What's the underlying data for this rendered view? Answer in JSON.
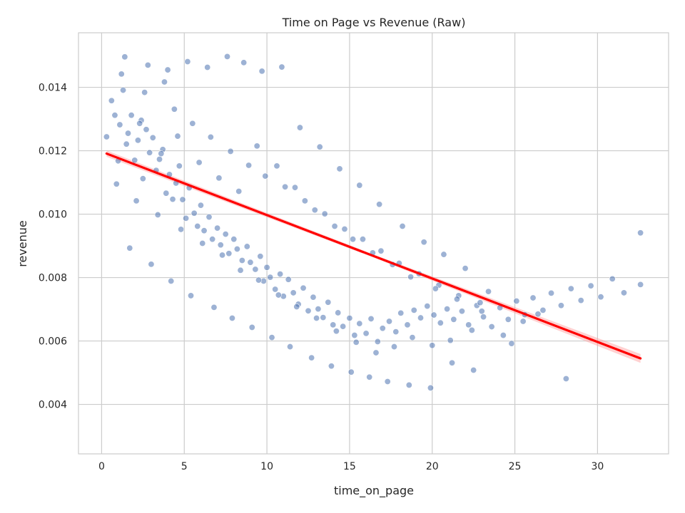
{
  "chart_data": {
    "type": "scatter",
    "title": "Time on Page vs Revenue (Raw)",
    "xlabel": "time_on_page",
    "ylabel": "revenue",
    "xlim": [
      -1.4,
      34.3
    ],
    "ylim": [
      0.00244,
      0.01572
    ],
    "x_ticks": [
      0,
      5,
      10,
      15,
      20,
      25,
      30
    ],
    "x_tick_labels": [
      "0",
      "5",
      "10",
      "15",
      "20",
      "25",
      "30"
    ],
    "y_ticks": [
      0.004,
      0.006,
      0.008,
      0.01,
      0.012,
      0.014
    ],
    "y_tick_labels": [
      "0.004",
      "0.006",
      "0.008",
      "0.010",
      "0.012",
      "0.014"
    ],
    "grid": true,
    "colors": {
      "points": "#4c72b0",
      "regression_line": "#ff0000",
      "confidence_band": "#ff9999",
      "grid": "#cccccc",
      "spines": "#cccccc"
    },
    "series": [
      {
        "kind": "points",
        "approx_point_count": 3000,
        "x": [
          0.3,
          0.6,
          0.8,
          1.0,
          1.1,
          1.3,
          1.5,
          1.6,
          1.8,
          2.0,
          2.2,
          2.4,
          2.5,
          2.7,
          2.9,
          3.1,
          3.3,
          3.5,
          3.7,
          3.9,
          4.1,
          4.3,
          4.5,
          4.7,
          4.9,
          5.1,
          5.3,
          5.6,
          5.8,
          6.0,
          6.2,
          6.5,
          6.7,
          7.0,
          7.2,
          7.5,
          7.7,
          8.0,
          8.2,
          8.5,
          8.8,
          9.0,
          9.3,
          9.6,
          9.8,
          10.0,
          10.2,
          10.5,
          10.8,
          11.0,
          11.3,
          11.6,
          11.9,
          12.2,
          12.5,
          12.8,
          13.1,
          13.4,
          13.7,
          14.0,
          14.3,
          14.6,
          15.0,
          15.3,
          15.6,
          16.0,
          16.3,
          16.7,
          17.0,
          17.4,
          17.8,
          18.1,
          18.5,
          18.9,
          19.3,
          19.7,
          20.1,
          20.5,
          20.9,
          21.3,
          21.8,
          22.2,
          22.7,
          23.1,
          23.6,
          24.1,
          24.6,
          25.1,
          25.6,
          26.1,
          26.7,
          27.2,
          27.8,
          28.4,
          29.0,
          29.6,
          30.2,
          30.9,
          31.6,
          32.6,
          1.2,
          2.6,
          3.8,
          4.4,
          5.5,
          6.6,
          7.8,
          8.9,
          9.9,
          11.1,
          12.3,
          13.5,
          14.7,
          15.8,
          16.9,
          18.0,
          19.2,
          20.4,
          21.6,
          22.9,
          0.9,
          2.1,
          3.4,
          4.8,
          6.1,
          7.3,
          8.4,
          9.5,
          10.7,
          11.8,
          13.0,
          14.2,
          15.4,
          16.6,
          17.7,
          18.8,
          20.0,
          21.1,
          22.4,
          24.3,
          1.4,
          2.8,
          4.0,
          5.2,
          6.4,
          7.6,
          8.6,
          9.7,
          10.9,
          12.0,
          13.2,
          14.4,
          15.6,
          16.8,
          18.2,
          19.5,
          20.7,
          22.0,
          23.4,
          26.4,
          1.7,
          3.0,
          4.2,
          5.4,
          6.8,
          7.9,
          9.1,
          10.3,
          11.4,
          12.7,
          13.9,
          15.1,
          16.2,
          17.3,
          18.6,
          19.9,
          21.2,
          22.5,
          24.8,
          28.1,
          2.3,
          3.6,
          4.6,
          5.9,
          7.1,
          8.3,
          9.4,
          10.6,
          11.7,
          12.9,
          14.1,
          15.2,
          16.4,
          17.6,
          18.7,
          20.2,
          21.5,
          23.0,
          25.5,
          32.6
        ],
        "y": [
          0.01244,
          0.01358,
          0.01312,
          0.01168,
          0.01282,
          0.01391,
          0.01221,
          0.01255,
          0.01312,
          0.0117,
          0.01233,
          0.01296,
          0.01112,
          0.01267,
          0.01194,
          0.01241,
          0.01138,
          0.01173,
          0.01204,
          0.01066,
          0.01125,
          0.01047,
          0.01098,
          0.01152,
          0.01046,
          0.00987,
          0.01083,
          0.01003,
          0.00962,
          0.01028,
          0.00948,
          0.00991,
          0.00921,
          0.00956,
          0.00903,
          0.00937,
          0.00876,
          0.00921,
          0.0089,
          0.00854,
          0.00898,
          0.00848,
          0.00826,
          0.00867,
          0.00789,
          0.00832,
          0.00801,
          0.00763,
          0.00811,
          0.00741,
          0.00794,
          0.00752,
          0.00716,
          0.00767,
          0.00695,
          0.00738,
          0.00701,
          0.00674,
          0.00722,
          0.00651,
          0.00689,
          0.00646,
          0.00672,
          0.00618,
          0.00655,
          0.00624,
          0.0067,
          0.00598,
          0.0064,
          0.00662,
          0.00629,
          0.00688,
          0.00651,
          0.00697,
          0.00673,
          0.0071,
          0.00682,
          0.00657,
          0.00701,
          0.00668,
          0.00694,
          0.00651,
          0.00712,
          0.00676,
          0.00645,
          0.00705,
          0.00668,
          0.00726,
          0.00683,
          0.00736,
          0.00697,
          0.00751,
          0.00712,
          0.00765,
          0.00728,
          0.00774,
          0.00739,
          0.00796,
          0.00752,
          0.00778,
          0.01442,
          0.01384,
          0.01417,
          0.01331,
          0.01286,
          0.01243,
          0.01198,
          0.01154,
          0.0112,
          0.01086,
          0.01042,
          0.01001,
          0.00953,
          0.00921,
          0.00884,
          0.00845,
          0.00812,
          0.00776,
          0.00743,
          0.00721,
          0.01095,
          0.01042,
          0.00998,
          0.00952,
          0.00908,
          0.00871,
          0.00823,
          0.00792,
          0.00745,
          0.00708,
          0.00672,
          0.00631,
          0.00596,
          0.00563,
          0.00582,
          0.00611,
          0.00586,
          0.00602,
          0.00634,
          0.00618,
          0.01496,
          0.0147,
          0.01455,
          0.01481,
          0.01463,
          0.01497,
          0.01478,
          0.01451,
          0.01464,
          0.01273,
          0.01212,
          0.01143,
          0.01091,
          0.01031,
          0.00962,
          0.00912,
          0.00873,
          0.00829,
          0.00756,
          0.00685,
          0.00893,
          0.00842,
          0.00789,
          0.00743,
          0.00706,
          0.00672,
          0.00643,
          0.00611,
          0.00582,
          0.00547,
          0.00521,
          0.00502,
          0.00486,
          0.00472,
          0.00461,
          0.00452,
          0.00531,
          0.00508,
          0.00592,
          0.00481,
          0.01286,
          0.01191,
          0.01246,
          0.01163,
          0.01114,
          0.01072,
          0.01215,
          0.01152,
          0.01084,
          0.01013,
          0.00962,
          0.00921,
          0.00878,
          0.00841,
          0.00802,
          0.00765,
          0.00732,
          0.00694,
          0.00662,
          0.00941
        ]
      },
      {
        "kind": "regression_line",
        "x": [
          0.3,
          32.6
        ],
        "y": [
          0.01191,
          0.00545
        ]
      },
      {
        "kind": "confidence_band",
        "x": [
          0.3,
          16.45,
          32.6
        ],
        "lower": [
          0.01181,
          0.00863,
          0.00531
        ],
        "upper": [
          0.01201,
          0.00873,
          0.00559
        ]
      }
    ]
  }
}
